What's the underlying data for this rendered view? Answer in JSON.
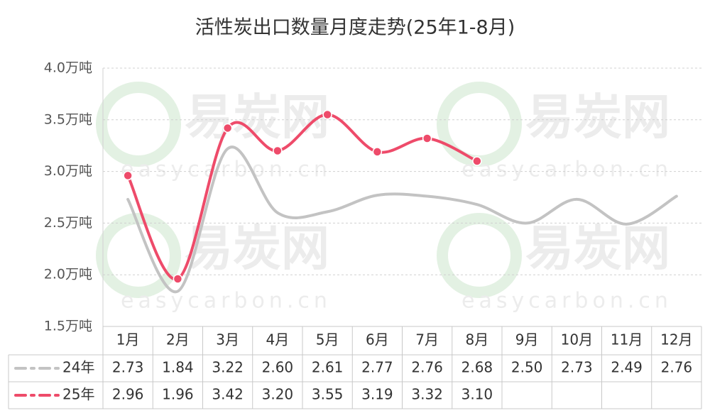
{
  "chart_data": {
    "type": "line",
    "title": "活性炭出口数量月度走势(25年1-8月)",
    "watermark": [
      "易炭网",
      "easycarbon.cn"
    ],
    "categories": [
      "1月",
      "2月",
      "3月",
      "4月",
      "5月",
      "6月",
      "7月",
      "8月",
      "9月",
      "10月",
      "11月",
      "12月"
    ],
    "series": [
      {
        "name": "24年",
        "color": "#c3c3c3",
        "values": [
          2.73,
          1.84,
          3.22,
          2.6,
          2.61,
          2.77,
          2.76,
          2.68,
          2.5,
          2.73,
          2.49,
          2.76
        ],
        "value_labels": [
          "2.73",
          "1.84",
          "3.22",
          "2.60",
          "2.61",
          "2.77",
          "2.76",
          "2.68",
          "2.50",
          "2.73",
          "2.49",
          "2.76"
        ],
        "markers": false
      },
      {
        "name": "25年",
        "color": "#ee4b6a",
        "values": [
          2.96,
          1.96,
          3.42,
          3.2,
          3.55,
          3.19,
          3.32,
          3.1,
          null,
          null,
          null,
          null
        ],
        "value_labels": [
          "2.96",
          "1.96",
          "3.42",
          "3.20",
          "3.55",
          "3.19",
          "3.32",
          "3.10",
          null,
          null,
          null,
          null
        ],
        "markers": true
      }
    ],
    "ylim": [
      1.5,
      4.0
    ],
    "yticks": [
      {
        "value": 1.5,
        "label": "1.5万吨"
      },
      {
        "value": 2.0,
        "label": "2.0万吨"
      },
      {
        "value": 2.5,
        "label": "2.5万吨"
      },
      {
        "value": 3.0,
        "label": "3.0万吨"
      },
      {
        "value": 3.5,
        "label": "3.5万吨"
      },
      {
        "value": 4.0,
        "label": "4.0万吨"
      }
    ],
    "grid": true,
    "smooth": true,
    "data_table": true
  }
}
